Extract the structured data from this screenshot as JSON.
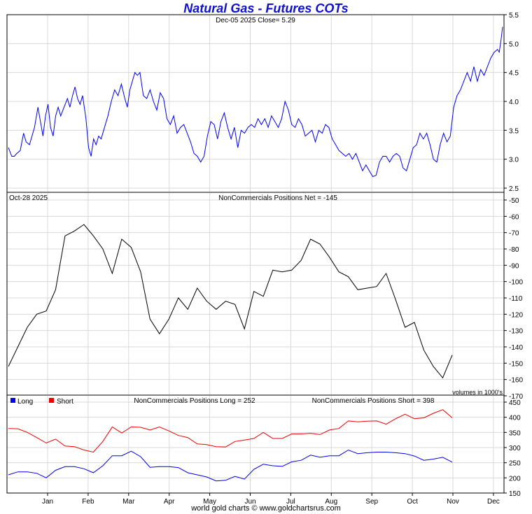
{
  "title": "Natural Gas - Futures COTs",
  "footer": "world gold charts © www.goldchartsrus.com",
  "colors": {
    "price": "#0000ee",
    "net": "#000000",
    "long": "#0000ee",
    "short": "#ee0000",
    "grid": "#d8d8d8",
    "title": "#1010d0"
  },
  "x_axis": {
    "months": [
      "Jan",
      "Feb",
      "Mar",
      "Apr",
      "May",
      "Jun",
      "Jul",
      "Aug",
      "Sep",
      "Oct",
      "Nov",
      "Dec"
    ]
  },
  "chart_data": [
    {
      "type": "line",
      "panel": "price",
      "header": "Dec-05  2025   Close= 5.29",
      "ylim": [
        2.5,
        5.5
      ],
      "yticks": [
        "2.5",
        "3.0",
        "3.5",
        "4.0",
        "4.5",
        "5.0",
        "5.5"
      ],
      "series": [
        {
          "points": [
            [
              0.0,
              3.2
            ],
            [
              0.4,
              3.05
            ],
            [
              0.7,
              3.05
            ],
            [
              1.0,
              3.1
            ],
            [
              1.4,
              3.15
            ],
            [
              1.8,
              3.45
            ],
            [
              2.1,
              3.3
            ],
            [
              2.5,
              3.25
            ],
            [
              2.8,
              3.4
            ],
            [
              3.1,
              3.55
            ],
            [
              3.5,
              3.9
            ],
            [
              3.8,
              3.65
            ],
            [
              4.1,
              3.4
            ],
            [
              4.4,
              3.75
            ],
            [
              4.7,
              3.95
            ],
            [
              5.0,
              3.55
            ],
            [
              5.3,
              3.4
            ],
            [
              5.6,
              3.75
            ],
            [
              5.9,
              3.9
            ],
            [
              6.2,
              3.75
            ],
            [
              6.6,
              3.9
            ],
            [
              7.0,
              4.05
            ],
            [
              7.3,
              3.9
            ],
            [
              7.6,
              4.1
            ],
            [
              7.9,
              4.25
            ],
            [
              8.2,
              4.05
            ],
            [
              8.5,
              3.95
            ],
            [
              8.8,
              4.1
            ],
            [
              9.2,
              3.7
            ],
            [
              9.5,
              3.2
            ],
            [
              9.8,
              3.05
            ],
            [
              10.1,
              3.35
            ],
            [
              10.4,
              3.25
            ],
            [
              10.7,
              3.4
            ],
            [
              11.0,
              3.35
            ],
            [
              11.4,
              3.55
            ],
            [
              11.8,
              3.75
            ],
            [
              12.2,
              4.0
            ],
            [
              12.6,
              4.2
            ],
            [
              13.0,
              4.1
            ],
            [
              13.4,
              4.3
            ],
            [
              13.8,
              4.05
            ],
            [
              14.1,
              3.9
            ],
            [
              14.4,
              4.2
            ],
            [
              14.7,
              4.35
            ],
            [
              15.0,
              4.5
            ],
            [
              15.3,
              4.45
            ],
            [
              15.6,
              4.5
            ],
            [
              16.0,
              4.1
            ],
            [
              16.4,
              4.05
            ],
            [
              16.8,
              4.2
            ],
            [
              17.2,
              4.0
            ],
            [
              17.6,
              3.85
            ],
            [
              18.0,
              4.15
            ],
            [
              18.4,
              4.05
            ],
            [
              18.8,
              3.7
            ],
            [
              19.2,
              3.6
            ],
            [
              19.6,
              3.75
            ],
            [
              20.0,
              3.45
            ],
            [
              20.4,
              3.55
            ],
            [
              20.8,
              3.6
            ],
            [
              21.2,
              3.45
            ],
            [
              21.6,
              3.3
            ],
            [
              22.0,
              3.1
            ],
            [
              22.4,
              3.05
            ],
            [
              22.8,
              2.95
            ],
            [
              23.2,
              3.05
            ],
            [
              23.6,
              3.4
            ],
            [
              24.0,
              3.65
            ],
            [
              24.4,
              3.6
            ],
            [
              24.8,
              3.35
            ],
            [
              25.2,
              3.65
            ],
            [
              25.6,
              3.8
            ],
            [
              26.0,
              3.55
            ],
            [
              26.4,
              3.35
            ],
            [
              26.8,
              3.55
            ],
            [
              27.2,
              3.2
            ],
            [
              27.6,
              3.5
            ],
            [
              28.0,
              3.45
            ],
            [
              28.4,
              3.55
            ],
            [
              28.8,
              3.6
            ],
            [
              29.2,
              3.55
            ],
            [
              29.6,
              3.7
            ],
            [
              30.0,
              3.6
            ],
            [
              30.4,
              3.7
            ],
            [
              30.8,
              3.55
            ],
            [
              31.2,
              3.75
            ],
            [
              31.6,
              3.65
            ],
            [
              32.0,
              3.55
            ],
            [
              32.4,
              3.7
            ],
            [
              32.8,
              4.0
            ],
            [
              33.2,
              3.85
            ],
            [
              33.6,
              3.6
            ],
            [
              34.0,
              3.55
            ],
            [
              34.4,
              3.7
            ],
            [
              34.8,
              3.6
            ],
            [
              35.2,
              3.4
            ],
            [
              35.6,
              3.45
            ],
            [
              36.0,
              3.5
            ],
            [
              36.4,
              3.3
            ],
            [
              36.8,
              3.5
            ],
            [
              37.2,
              3.45
            ],
            [
              37.6,
              3.6
            ],
            [
              38.0,
              3.55
            ],
            [
              38.4,
              3.35
            ],
            [
              38.8,
              3.25
            ],
            [
              39.2,
              3.15
            ],
            [
              39.6,
              3.1
            ],
            [
              40.0,
              3.05
            ],
            [
              40.4,
              3.1
            ],
            [
              40.8,
              3.0
            ],
            [
              41.2,
              3.1
            ],
            [
              41.6,
              2.95
            ],
            [
              42.0,
              2.8
            ],
            [
              42.4,
              2.9
            ],
            [
              42.8,
              2.8
            ],
            [
              43.2,
              2.7
            ],
            [
              43.6,
              2.72
            ],
            [
              44.0,
              2.95
            ],
            [
              44.4,
              3.05
            ],
            [
              44.8,
              3.05
            ],
            [
              45.2,
              2.95
            ],
            [
              45.6,
              3.05
            ],
            [
              46.0,
              3.1
            ],
            [
              46.4,
              3.05
            ],
            [
              46.8,
              2.85
            ],
            [
              47.2,
              2.8
            ],
            [
              47.6,
              3.0
            ],
            [
              48.0,
              3.2
            ],
            [
              48.4,
              3.25
            ],
            [
              48.8,
              3.45
            ],
            [
              49.2,
              3.35
            ],
            [
              49.6,
              3.45
            ],
            [
              50.0,
              3.25
            ],
            [
              50.4,
              3.0
            ],
            [
              50.8,
              2.95
            ],
            [
              51.2,
              3.25
            ],
            [
              51.6,
              3.45
            ],
            [
              52.0,
              3.3
            ],
            [
              52.4,
              3.4
            ],
            [
              52.8,
              3.9
            ],
            [
              53.2,
              4.1
            ],
            [
              53.6,
              4.2
            ],
            [
              54.0,
              4.35
            ],
            [
              54.4,
              4.5
            ],
            [
              54.8,
              4.35
            ],
            [
              55.2,
              4.6
            ],
            [
              55.6,
              4.35
            ],
            [
              56.0,
              4.55
            ],
            [
              56.4,
              4.45
            ],
            [
              56.8,
              4.6
            ],
            [
              57.2,
              4.75
            ],
            [
              57.6,
              4.85
            ],
            [
              58.0,
              4.9
            ],
            [
              58.2,
              4.85
            ],
            [
              58.4,
              5.05
            ],
            [
              58.6,
              5.29
            ]
          ]
        }
      ]
    },
    {
      "type": "line",
      "panel": "net",
      "header_left": "Oct-28  2025",
      "header": "NonCommercials Positions Net = -145",
      "note": "volumes in 1000's",
      "ylim": [
        -170,
        -50
      ],
      "yticks": [
        "-50",
        "-60",
        "-70",
        "-80",
        "-90",
        "-100",
        "-110",
        "-120",
        "-130",
        "-140",
        "-150",
        "-160",
        "-170"
      ],
      "series": [
        {
          "points": [
            [
              0,
              -152
            ],
            [
              1,
              -140
            ],
            [
              2,
              -128
            ],
            [
              3,
              -120
            ],
            [
              4,
              -118
            ],
            [
              5,
              -105
            ],
            [
              6,
              -72
            ],
            [
              7,
              -69
            ],
            [
              8,
              -65
            ],
            [
              9,
              -72
            ],
            [
              10,
              -80
            ],
            [
              11,
              -95
            ],
            [
              12,
              -74
            ],
            [
              13,
              -79
            ],
            [
              14,
              -94
            ],
            [
              15,
              -123
            ],
            [
              16,
              -132
            ],
            [
              17,
              -123
            ],
            [
              18,
              -110
            ],
            [
              19,
              -117
            ],
            [
              20,
              -104
            ],
            [
              21,
              -112
            ],
            [
              22,
              -117
            ],
            [
              23,
              -112
            ],
            [
              24,
              -114
            ],
            [
              25,
              -129
            ],
            [
              26,
              -106
            ],
            [
              27,
              -109
            ],
            [
              28,
              -93
            ],
            [
              29,
              -94
            ],
            [
              30,
              -93
            ],
            [
              31,
              -87
            ],
            [
              32,
              -74
            ],
            [
              33,
              -77
            ],
            [
              34,
              -85
            ],
            [
              35,
              -94
            ],
            [
              36,
              -97
            ],
            [
              37,
              -105
            ],
            [
              38,
              -104
            ],
            [
              39,
              -103
            ],
            [
              40,
              -95
            ],
            [
              41,
              -111
            ],
            [
              42,
              -128
            ],
            [
              43,
              -125
            ],
            [
              44,
              -142
            ],
            [
              45,
              -152
            ],
            [
              46,
              -159
            ],
            [
              47,
              -145
            ]
          ]
        }
      ]
    },
    {
      "type": "line",
      "panel": "positions",
      "ylim": [
        150,
        450
      ],
      "yticks": [
        "150",
        "200",
        "250",
        "300",
        "350",
        "400",
        "450"
      ],
      "legend": [
        "Long",
        "Short"
      ],
      "legend_position": "top-left",
      "long_label": "NonCommercials Positions Long = 252",
      "short_label": "NonCommercials Positions Short = 398",
      "series": [
        {
          "name": "Long",
          "color": "#0000ee",
          "values": [
            210,
            220,
            220,
            215,
            200,
            225,
            237,
            237,
            230,
            217,
            240,
            273,
            273,
            288,
            270,
            235,
            237,
            237,
            234,
            217,
            210,
            203,
            190,
            192,
            205,
            196,
            228,
            245,
            240,
            238,
            253,
            258,
            275,
            268,
            273,
            273,
            292,
            280,
            283,
            285,
            285,
            283,
            280,
            272,
            258,
            262,
            268,
            252
          ]
        },
        {
          "name": "Short",
          "color": "#ee0000",
          "values": [
            363,
            362,
            350,
            333,
            315,
            328,
            305,
            303,
            292,
            285,
            320,
            368,
            348,
            368,
            367,
            358,
            368,
            355,
            340,
            333,
            312,
            310,
            303,
            302,
            320,
            325,
            330,
            350,
            330,
            330,
            345,
            345,
            347,
            343,
            358,
            363,
            388,
            385,
            387,
            388,
            377,
            395,
            410,
            395,
            398,
            413,
            425,
            398
          ]
        }
      ]
    }
  ]
}
